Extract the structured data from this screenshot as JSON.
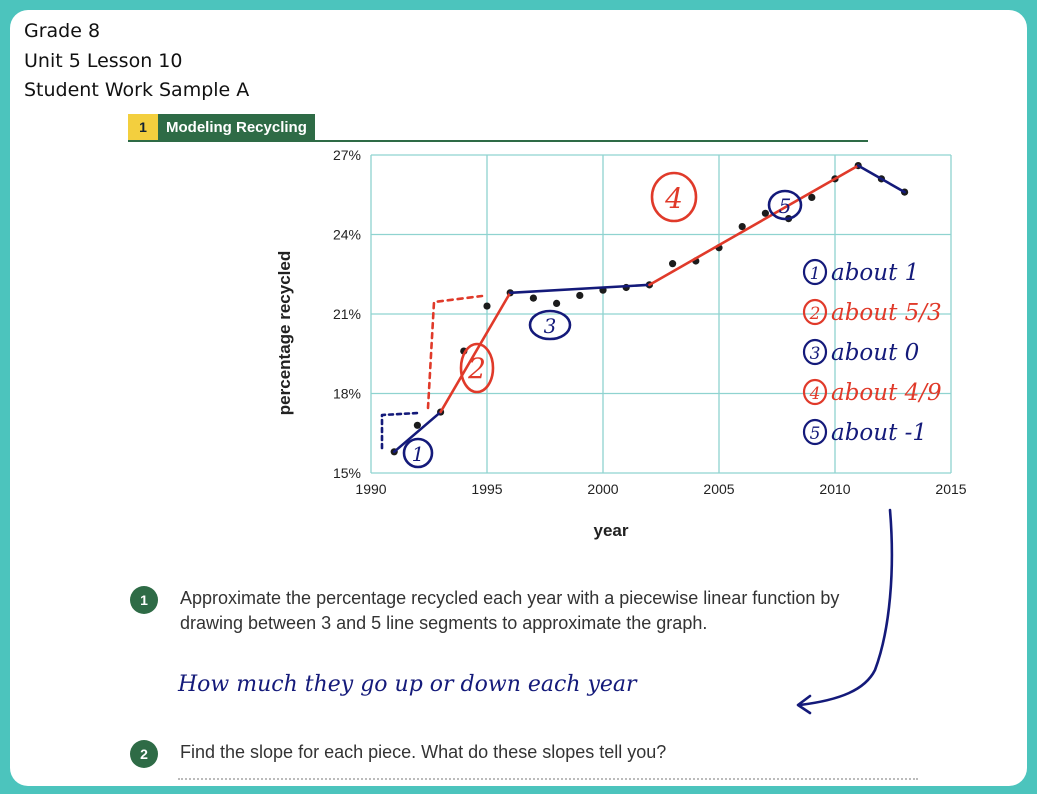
{
  "header": {
    "grade": "Grade 8",
    "lesson": "Unit 5 Lesson 10",
    "sample": "Student Work Sample A"
  },
  "activity": {
    "number": "1",
    "title": "Modeling Recycling"
  },
  "chart_data": {
    "type": "scatter",
    "xlabel": "year",
    "ylabel": "percentage recycled",
    "xlim": [
      1990,
      2015
    ],
    "ylim": [
      15,
      27
    ],
    "x_ticks": [
      "1990",
      "1995",
      "2000",
      "2005",
      "2010",
      "2015"
    ],
    "y_ticks": [
      "15%",
      "18%",
      "21%",
      "24%",
      "27%"
    ],
    "grid": true,
    "series": [
      {
        "x": [
          1991,
          1992,
          1993,
          1994,
          1995,
          1996,
          1997,
          1998,
          1999,
          2000,
          2001,
          2002,
          2003,
          2004,
          2005,
          2006,
          2007,
          2008,
          2009,
          2010,
          2011,
          2012,
          2013
        ],
        "y": [
          15.8,
          16.8,
          17.3,
          19.6,
          21.3,
          21.8,
          21.6,
          21.4,
          21.7,
          21.9,
          22.0,
          22.1,
          22.9,
          23.0,
          23.5,
          24.3,
          24.8,
          24.6,
          25.4,
          26.1,
          26.6,
          26.1,
          25.6
        ]
      }
    ],
    "student_segments": [
      {
        "label": "1",
        "x": [
          1991,
          1993
        ],
        "y": [
          15.8,
          17.3
        ],
        "color": "#141a7a"
      },
      {
        "label": "2",
        "x": [
          1993,
          1996
        ],
        "y": [
          17.3,
          21.8
        ],
        "color": "#e03a2a"
      },
      {
        "label": "3",
        "x": [
          1996,
          2002
        ],
        "y": [
          21.8,
          22.1
        ],
        "color": "#141a7a"
      },
      {
        "label": "4",
        "x": [
          2002,
          2011
        ],
        "y": [
          22.1,
          26.6
        ],
        "color": "#e03a2a"
      },
      {
        "label": "5",
        "x": [
          2011,
          2013
        ],
        "y": [
          26.6,
          25.6
        ],
        "color": "#141a7a"
      }
    ]
  },
  "annotations": {
    "slopes": [
      {
        "num": "1",
        "text": "about 1",
        "color": "#141a7a"
      },
      {
        "num": "2",
        "text": "about 5/3",
        "color": "#e03a2a"
      },
      {
        "num": "3",
        "text": "about 0",
        "color": "#141a7a"
      },
      {
        "num": "4",
        "text": "about 4/9",
        "color": "#e03a2a"
      },
      {
        "num": "5",
        "text": "about -1",
        "color": "#141a7a"
      }
    ],
    "answer": "How much they go up or down each year"
  },
  "questions": [
    {
      "num": "1",
      "line1": "Approximate the percentage recycled each year with a piecewise linear function by",
      "line2": "drawing between 3 and 5 line segments to approximate the graph."
    },
    {
      "num": "2",
      "line1": "Find the slope for each piece. What do these slopes tell you?"
    }
  ]
}
